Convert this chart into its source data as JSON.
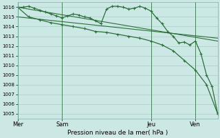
{
  "background_color": "#cce8e4",
  "plot_bg_color": "#cce8e4",
  "grid_color": "#aaccc8",
  "line_color": "#2a6e3a",
  "xlabel": "Pression niveau de la mer( hPa )",
  "ylim": [
    1004.5,
    1016.5
  ],
  "yticks": [
    1005,
    1006,
    1007,
    1008,
    1009,
    1010,
    1011,
    1012,
    1013,
    1014,
    1015,
    1016
  ],
  "day_labels": [
    "Mer",
    "Sam",
    "Jeu",
    "Ven"
  ],
  "day_positions": [
    0,
    8,
    24,
    32
  ],
  "xlim": [
    0,
    36
  ],
  "series": [
    {
      "x": [
        0,
        36
      ],
      "y": [
        1016.0,
        1012.5
      ],
      "marker": null,
      "linewidth": 0.8,
      "linestyle": "-"
    },
    {
      "x": [
        0,
        36
      ],
      "y": [
        1015.0,
        1012.8
      ],
      "marker": null,
      "linewidth": 0.8,
      "linestyle": "-"
    },
    {
      "x": [
        0,
        1,
        2,
        3,
        4,
        5,
        6,
        7,
        8,
        9,
        10,
        11,
        12,
        13,
        14,
        15,
        16,
        17,
        18,
        19,
        20,
        21,
        22,
        23,
        24,
        25,
        26,
        27,
        28,
        29,
        30,
        31,
        32,
        33,
        34,
        35,
        36
      ],
      "y": [
        1016.0,
        1016.0,
        1016.1,
        1015.9,
        1015.7,
        1015.5,
        1015.3,
        1015.1,
        1014.9,
        1015.1,
        1015.3,
        1015.2,
        1015.0,
        1014.9,
        1014.6,
        1014.3,
        1015.8,
        1016.1,
        1016.1,
        1016.0,
        1015.8,
        1015.9,
        1016.1,
        1015.9,
        1015.6,
        1014.9,
        1014.3,
        1013.5,
        1013.0,
        1012.3,
        1012.4,
        1012.1,
        1012.5,
        1011.2,
        1009.0,
        1007.8,
        1005.0
      ],
      "marker": "+",
      "markersize": 3.5,
      "linewidth": 0.9,
      "linestyle": "-"
    },
    {
      "x": [
        0,
        2,
        4,
        6,
        8,
        10,
        12,
        14,
        16,
        18,
        20,
        22,
        24,
        26,
        28,
        30,
        32,
        34,
        36
      ],
      "y": [
        1016.0,
        1015.0,
        1014.7,
        1014.4,
        1014.2,
        1014.0,
        1013.8,
        1013.5,
        1013.4,
        1013.2,
        1013.0,
        1012.8,
        1012.5,
        1012.1,
        1011.5,
        1010.5,
        1009.5,
        1008.0,
        1005.0
      ],
      "marker": "+",
      "markersize": 3.5,
      "linewidth": 0.9,
      "linestyle": "-"
    }
  ]
}
